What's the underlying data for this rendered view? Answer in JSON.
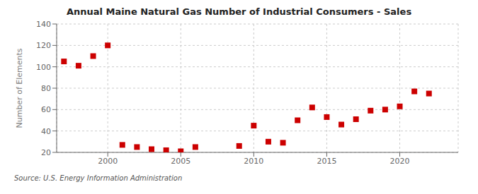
{
  "chart_data": {
    "type": "scatter",
    "title": "Annual Maine Natural Gas Number of Industrial Consumers - Sales",
    "ylabel": "Number of Elements",
    "annotations": [
      "Source: U.S. Energy Information Administration"
    ],
    "x": [
      1997,
      1998,
      1999,
      2000,
      2001,
      2002,
      2003,
      2004,
      2005,
      2006,
      2009,
      2010,
      2011,
      2012,
      2013,
      2014,
      2015,
      2016,
      2017,
      2018,
      2019,
      2020,
      2021,
      2022
    ],
    "values": [
      105,
      101,
      110,
      120,
      27,
      25,
      23,
      22,
      21,
      25,
      26,
      45,
      30,
      29,
      50,
      62,
      53,
      46,
      51,
      59,
      60,
      63,
      77,
      75
    ],
    "color": "#cc0000",
    "marker": "square",
    "xlim": [
      1996.5,
      2024
    ],
    "ylim": [
      20,
      140
    ],
    "xticks": [
      2000,
      2005,
      2010,
      2015,
      2020
    ],
    "yticks": [
      20,
      40,
      60,
      80,
      100,
      120,
      140
    ],
    "grid": true
  }
}
